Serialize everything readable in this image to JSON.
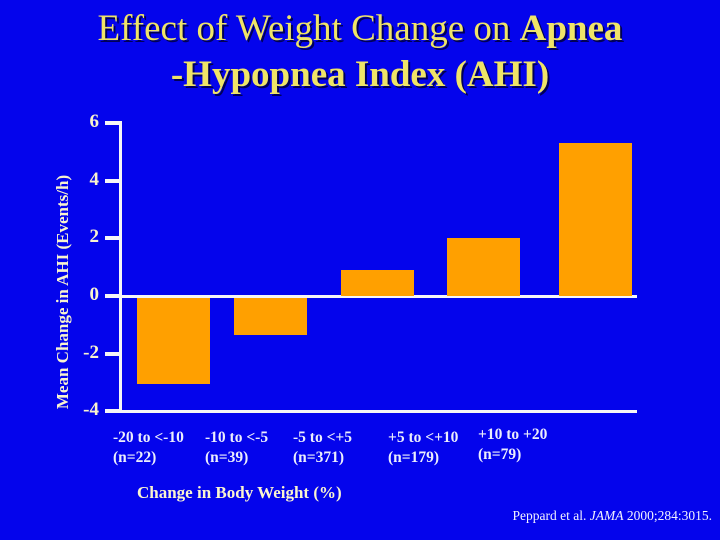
{
  "slide": {
    "title": {
      "line1_regular": "Effect of Weight Change on ",
      "line1_bold": "Apnea",
      "line2_bold": "-Hypopnea Index (AHI)"
    },
    "citation": {
      "prefix": "Peppard et al. ",
      "journal": "JAMA",
      "suffix": " 2000;284:3015."
    }
  },
  "chart_data": {
    "type": "bar",
    "title": "Effect of Weight Change on Apnea-Hypopnea Index (AHI)",
    "categories": [
      "-20 to <-10",
      "-10 to <-5",
      "-5 to <+5",
      "+5 to <+10",
      "+10 to +20"
    ],
    "category_counts": [
      "(n=22)",
      "(n=39)",
      "(n=371)",
      "(n=179)",
      "(n=79)"
    ],
    "values": [
      -3.0,
      -1.3,
      0.9,
      2.0,
      5.3
    ],
    "xlabel": "Change in Body Weight (%)",
    "ylabel": "Mean Change in AHI (Events/h)",
    "yticks": [
      6,
      4,
      2,
      0,
      -2,
      -4
    ],
    "ylim": [
      -4,
      6
    ],
    "grid": false,
    "legend": false,
    "bar_color": "#FFA000",
    "axis_color": "#F6F6F6",
    "background_color": "#0404EC",
    "title_color": "#EFE468",
    "axis_text_color": "#F8F3CE",
    "category_text_color": "#ECEEFC"
  }
}
